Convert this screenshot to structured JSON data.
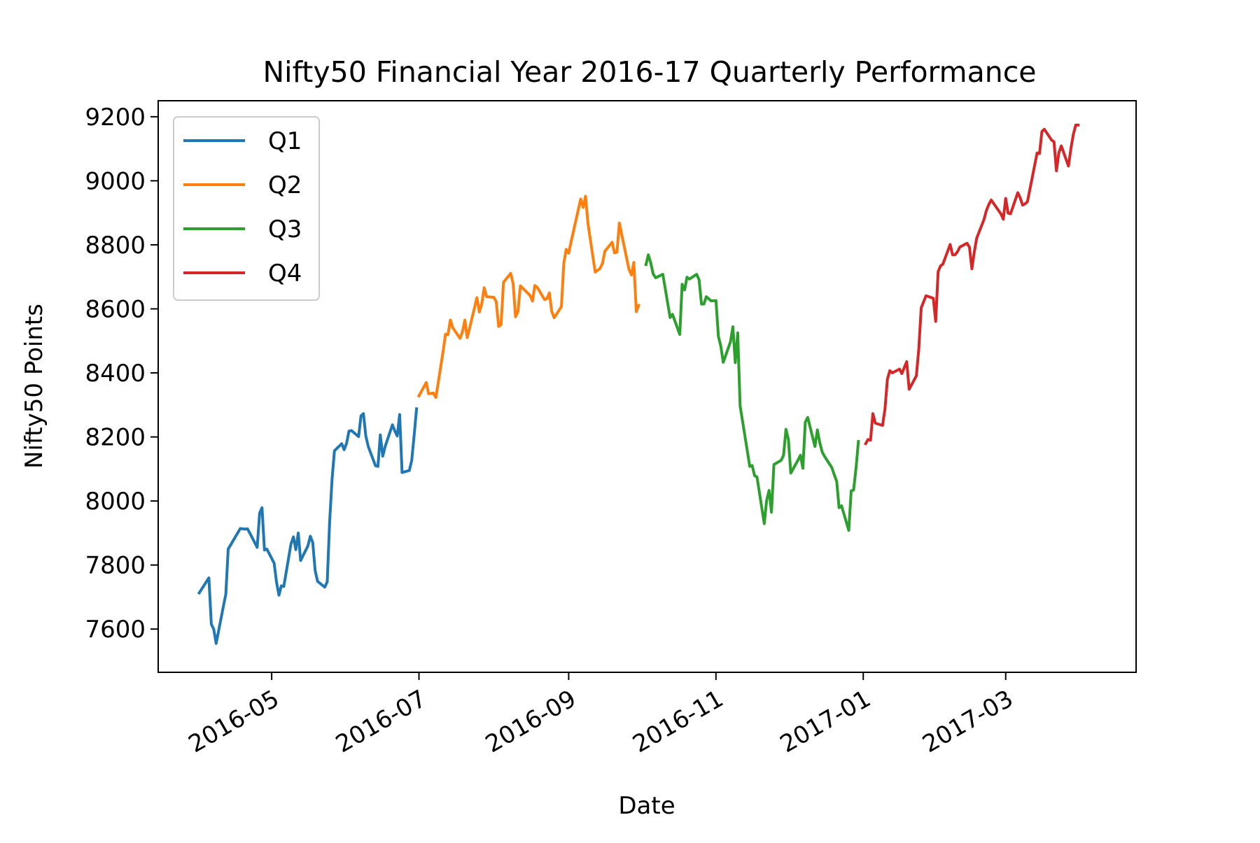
{
  "chart_data": {
    "type": "line",
    "title": "Nifty50 Financial Year 2016-17 Quarterly Performance",
    "xlabel": "Date",
    "ylabel": "Nifty50 Points",
    "xlim": [
      "2016-03-15",
      "2017-04-24"
    ],
    "ylim": [
      7465,
      9250
    ],
    "x_ticks": [
      "2016-05",
      "2016-07",
      "2016-09",
      "2016-11",
      "2017-01",
      "2017-03"
    ],
    "y_ticks": [
      7600,
      7800,
      8000,
      8200,
      8400,
      8600,
      8800,
      9000,
      9200
    ],
    "grid": false,
    "legend": "upper-left",
    "series": [
      {
        "name": "Q1",
        "color": "#1f77b4",
        "points": [
          [
            "2016-04-01",
            7713
          ],
          [
            "2016-04-05",
            7760
          ],
          [
            "2016-04-06",
            7615
          ],
          [
            "2016-04-07",
            7600
          ],
          [
            "2016-04-08",
            7555
          ],
          [
            "2016-04-11",
            7671
          ],
          [
            "2016-04-12",
            7709
          ],
          [
            "2016-04-13",
            7850
          ],
          [
            "2016-04-18",
            7914
          ],
          [
            "2016-04-20",
            7912
          ],
          [
            "2016-04-21",
            7913
          ],
          [
            "2016-04-22",
            7899
          ],
          [
            "2016-04-25",
            7855
          ],
          [
            "2016-04-26",
            7962
          ],
          [
            "2016-04-27",
            7979
          ],
          [
            "2016-04-28",
            7847
          ],
          [
            "2016-04-29",
            7850
          ],
          [
            "2016-05-02",
            7806
          ],
          [
            "2016-05-03",
            7747
          ],
          [
            "2016-05-04",
            7706
          ],
          [
            "2016-05-05",
            7735
          ],
          [
            "2016-05-06",
            7733
          ],
          [
            "2016-05-09",
            7866
          ],
          [
            "2016-05-10",
            7888
          ],
          [
            "2016-05-11",
            7848
          ],
          [
            "2016-05-12",
            7900
          ],
          [
            "2016-05-13",
            7814
          ],
          [
            "2016-05-16",
            7860
          ],
          [
            "2016-05-17",
            7890
          ],
          [
            "2016-05-18",
            7870
          ],
          [
            "2016-05-19",
            7783
          ],
          [
            "2016-05-20",
            7749
          ],
          [
            "2016-05-23",
            7731
          ],
          [
            "2016-05-24",
            7748
          ],
          [
            "2016-05-25",
            7935
          ],
          [
            "2016-05-26",
            8069
          ],
          [
            "2016-05-27",
            8157
          ],
          [
            "2016-05-30",
            8179
          ],
          [
            "2016-05-31",
            8160
          ],
          [
            "2016-06-01",
            8180
          ],
          [
            "2016-06-02",
            8218
          ],
          [
            "2016-06-03",
            8220
          ],
          [
            "2016-06-06",
            8201
          ],
          [
            "2016-06-07",
            8266
          ],
          [
            "2016-06-08",
            8273
          ],
          [
            "2016-06-09",
            8203
          ],
          [
            "2016-06-10",
            8170
          ],
          [
            "2016-06-13",
            8110
          ],
          [
            "2016-06-14",
            8108
          ],
          [
            "2016-06-15",
            8206
          ],
          [
            "2016-06-16",
            8140
          ],
          [
            "2016-06-17",
            8170
          ],
          [
            "2016-06-20",
            8238
          ],
          [
            "2016-06-21",
            8219
          ],
          [
            "2016-06-22",
            8203
          ],
          [
            "2016-06-23",
            8270
          ],
          [
            "2016-06-24",
            8089
          ],
          [
            "2016-06-27",
            8095
          ],
          [
            "2016-06-28",
            8127
          ],
          [
            "2016-06-29",
            8204
          ],
          [
            "2016-06-30",
            8288
          ]
        ]
      },
      {
        "name": "Q2",
        "color": "#ff7f0e",
        "points": [
          [
            "2016-07-01",
            8328
          ],
          [
            "2016-07-04",
            8370
          ],
          [
            "2016-07-05",
            8335
          ],
          [
            "2016-07-07",
            8337
          ],
          [
            "2016-07-08",
            8323
          ],
          [
            "2016-07-11",
            8467
          ],
          [
            "2016-07-12",
            8521
          ],
          [
            "2016-07-13",
            8519
          ],
          [
            "2016-07-14",
            8565
          ],
          [
            "2016-07-15",
            8541
          ],
          [
            "2016-07-18",
            8508
          ],
          [
            "2016-07-19",
            8528
          ],
          [
            "2016-07-20",
            8565
          ],
          [
            "2016-07-21",
            8510
          ],
          [
            "2016-07-22",
            8541
          ],
          [
            "2016-07-25",
            8635
          ],
          [
            "2016-07-26",
            8590
          ],
          [
            "2016-07-27",
            8615
          ],
          [
            "2016-07-28",
            8666
          ],
          [
            "2016-07-29",
            8638
          ],
          [
            "2016-08-01",
            8636
          ],
          [
            "2016-08-02",
            8622
          ],
          [
            "2016-08-03",
            8545
          ],
          [
            "2016-08-04",
            8551
          ],
          [
            "2016-08-05",
            8683
          ],
          [
            "2016-08-08",
            8711
          ],
          [
            "2016-08-09",
            8678
          ],
          [
            "2016-08-10",
            8575
          ],
          [
            "2016-08-11",
            8592
          ],
          [
            "2016-08-12",
            8672
          ],
          [
            "2016-08-16",
            8642
          ],
          [
            "2016-08-17",
            8624
          ],
          [
            "2016-08-18",
            8673
          ],
          [
            "2016-08-19",
            8667
          ],
          [
            "2016-08-22",
            8629
          ],
          [
            "2016-08-23",
            8632
          ],
          [
            "2016-08-24",
            8650
          ],
          [
            "2016-08-25",
            8592
          ],
          [
            "2016-08-26",
            8572
          ],
          [
            "2016-08-29",
            8607
          ],
          [
            "2016-08-30",
            8744
          ],
          [
            "2016-08-31",
            8786
          ],
          [
            "2016-09-01",
            8774
          ],
          [
            "2016-09-02",
            8809
          ],
          [
            "2016-09-06",
            8943
          ],
          [
            "2016-09-07",
            8917
          ],
          [
            "2016-09-08",
            8952
          ],
          [
            "2016-09-09",
            8866
          ],
          [
            "2016-09-12",
            8715
          ],
          [
            "2016-09-14",
            8726
          ],
          [
            "2016-09-15",
            8742
          ],
          [
            "2016-09-16",
            8780
          ],
          [
            "2016-09-19",
            8808
          ],
          [
            "2016-09-20",
            8775
          ],
          [
            "2016-09-21",
            8777
          ],
          [
            "2016-09-22",
            8868
          ],
          [
            "2016-09-23",
            8831
          ],
          [
            "2016-09-26",
            8723
          ],
          [
            "2016-09-27",
            8706
          ],
          [
            "2016-09-28",
            8745
          ],
          [
            "2016-09-29",
            8591
          ],
          [
            "2016-09-30",
            8611
          ]
        ]
      },
      {
        "name": "Q3",
        "color": "#2ca02c",
        "points": [
          [
            "2016-10-03",
            8738
          ],
          [
            "2016-10-04",
            8769
          ],
          [
            "2016-10-05",
            8743
          ],
          [
            "2016-10-06",
            8709
          ],
          [
            "2016-10-07",
            8697
          ],
          [
            "2016-10-10",
            8708
          ],
          [
            "2016-10-13",
            8573
          ],
          [
            "2016-10-14",
            8583
          ],
          [
            "2016-10-17",
            8520
          ],
          [
            "2016-10-18",
            8677
          ],
          [
            "2016-10-19",
            8659
          ],
          [
            "2016-10-20",
            8699
          ],
          [
            "2016-10-21",
            8693
          ],
          [
            "2016-10-24",
            8708
          ],
          [
            "2016-10-25",
            8691
          ],
          [
            "2016-10-26",
            8615
          ],
          [
            "2016-10-27",
            8615
          ],
          [
            "2016-10-28",
            8638
          ],
          [
            "2016-10-30",
            8625
          ],
          [
            "2016-11-01",
            8626
          ],
          [
            "2016-11-02",
            8514
          ],
          [
            "2016-11-03",
            8484
          ],
          [
            "2016-11-04",
            8433
          ],
          [
            "2016-11-07",
            8497
          ],
          [
            "2016-11-08",
            8544
          ],
          [
            "2016-11-09",
            8432
          ],
          [
            "2016-11-10",
            8525
          ],
          [
            "2016-11-11",
            8297
          ],
          [
            "2016-11-15",
            8108
          ],
          [
            "2016-11-16",
            8111
          ],
          [
            "2016-11-17",
            8079
          ],
          [
            "2016-11-18",
            8075
          ],
          [
            "2016-11-21",
            7929
          ],
          [
            "2016-11-22",
            8002
          ],
          [
            "2016-11-23",
            8033
          ],
          [
            "2016-11-24",
            7965
          ],
          [
            "2016-11-25",
            8114
          ],
          [
            "2016-11-28",
            8127
          ],
          [
            "2016-11-29",
            8143
          ],
          [
            "2016-11-30",
            8224
          ],
          [
            "2016-12-01",
            8192
          ],
          [
            "2016-12-02",
            8087
          ],
          [
            "2016-12-05",
            8128
          ],
          [
            "2016-12-06",
            8143
          ],
          [
            "2016-12-07",
            8102
          ],
          [
            "2016-12-08",
            8246
          ],
          [
            "2016-12-09",
            8261
          ],
          [
            "2016-12-12",
            8170
          ],
          [
            "2016-12-13",
            8222
          ],
          [
            "2016-12-14",
            8182
          ],
          [
            "2016-12-15",
            8153
          ],
          [
            "2016-12-16",
            8139
          ],
          [
            "2016-12-19",
            8104
          ],
          [
            "2016-12-20",
            8082
          ],
          [
            "2016-12-21",
            8061
          ],
          [
            "2016-12-22",
            7979
          ],
          [
            "2016-12-23",
            7985
          ],
          [
            "2016-12-26",
            7908
          ],
          [
            "2016-12-27",
            8032
          ],
          [
            "2016-12-28",
            8034
          ],
          [
            "2016-12-29",
            8103
          ],
          [
            "2016-12-30",
            8186
          ]
        ]
      },
      {
        "name": "Q4",
        "color": "#d62728",
        "points": [
          [
            "2017-01-02",
            8179
          ],
          [
            "2017-01-03",
            8192
          ],
          [
            "2017-01-04",
            8190
          ],
          [
            "2017-01-05",
            8273
          ],
          [
            "2017-01-06",
            8243
          ],
          [
            "2017-01-09",
            8236
          ],
          [
            "2017-01-10",
            8288
          ],
          [
            "2017-01-11",
            8380
          ],
          [
            "2017-01-12",
            8407
          ],
          [
            "2017-01-13",
            8400
          ],
          [
            "2017-01-16",
            8412
          ],
          [
            "2017-01-17",
            8398
          ],
          [
            "2017-01-18",
            8417
          ],
          [
            "2017-01-19",
            8435
          ],
          [
            "2017-01-20",
            8349
          ],
          [
            "2017-01-23",
            8391
          ],
          [
            "2017-01-24",
            8476
          ],
          [
            "2017-01-25",
            8603
          ],
          [
            "2017-01-27",
            8641
          ],
          [
            "2017-01-30",
            8633
          ],
          [
            "2017-01-31",
            8561
          ],
          [
            "2017-02-01",
            8716
          ],
          [
            "2017-02-02",
            8734
          ],
          [
            "2017-02-03",
            8740
          ],
          [
            "2017-02-06",
            8801
          ],
          [
            "2017-02-07",
            8769
          ],
          [
            "2017-02-08",
            8769
          ],
          [
            "2017-02-09",
            8778
          ],
          [
            "2017-02-10",
            8793
          ],
          [
            "2017-02-13",
            8805
          ],
          [
            "2017-02-14",
            8792
          ],
          [
            "2017-02-15",
            8725
          ],
          [
            "2017-02-16",
            8778
          ],
          [
            "2017-02-17",
            8821
          ],
          [
            "2017-02-20",
            8879
          ],
          [
            "2017-02-21",
            8907
          ],
          [
            "2017-02-22",
            8926
          ],
          [
            "2017-02-23",
            8940
          ],
          [
            "2017-02-27",
            8897
          ],
          [
            "2017-02-28",
            8880
          ],
          [
            "2017-03-01",
            8945
          ],
          [
            "2017-03-02",
            8899
          ],
          [
            "2017-03-03",
            8897
          ],
          [
            "2017-03-06",
            8963
          ],
          [
            "2017-03-07",
            8947
          ],
          [
            "2017-03-08",
            8924
          ],
          [
            "2017-03-09",
            8928
          ],
          [
            "2017-03-10",
            8935
          ],
          [
            "2017-03-14",
            9087
          ],
          [
            "2017-03-15",
            9085
          ],
          [
            "2017-03-16",
            9154
          ],
          [
            "2017-03-17",
            9161
          ],
          [
            "2017-03-20",
            9127
          ],
          [
            "2017-03-21",
            9122
          ],
          [
            "2017-03-22",
            9031
          ],
          [
            "2017-03-23",
            9087
          ],
          [
            "2017-03-24",
            9109
          ],
          [
            "2017-03-27",
            9046
          ],
          [
            "2017-03-28",
            9101
          ],
          [
            "2017-03-29",
            9144
          ],
          [
            "2017-03-30",
            9174
          ],
          [
            "2017-03-31",
            9174
          ]
        ]
      }
    ]
  }
}
